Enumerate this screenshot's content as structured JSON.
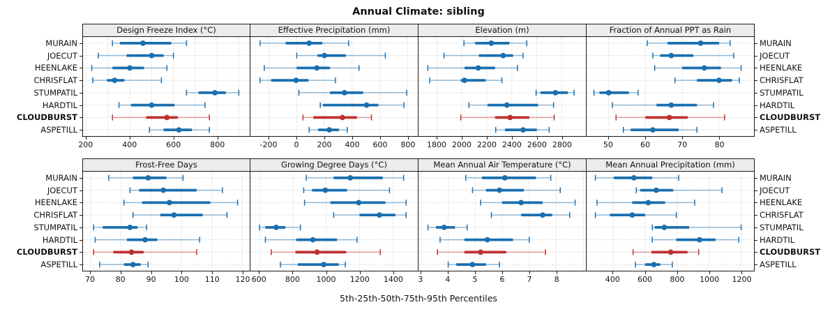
{
  "title": "Annual Climate: sibling",
  "caption": "5th-25th-50th-75th-95th Percentiles",
  "colors": {
    "series": "#1a6faf",
    "series_light": "rgba(26,111,175,0.45)",
    "highlight": "#bf3030",
    "highlight_light": "rgba(191,48,48,0.45)",
    "grid": "#c4c4c4",
    "border": "#1a1a1a",
    "header_bg": "#ececec"
  },
  "chart_data": {
    "type": "scatter",
    "style": "trellis dot plot with 5th-25th-50th-75th-95th percentile intervals (dot = median, thick bar = 25th-75th, thin whisker with end caps = 5th-95th)",
    "layout": {
      "panel_rows": 2,
      "panel_cols": 4,
      "site_labels_on_both_sides": true,
      "grid": "dotted"
    },
    "sites": [
      "MURAIN",
      "JOECUT",
      "HEENLAKE",
      "CHRISFLAT",
      "STUMPATIL",
      "HARDTIL",
      "CLOUDBURST",
      "ASPETILL"
    ],
    "highlight_site": "CLOUDBURST",
    "percentile_labels": [
      "5th",
      "25th",
      "50th",
      "75th",
      "95th"
    ],
    "panels": [
      {
        "title": "Design Freeze Index (°C)",
        "row": 0,
        "xlim": [
          185,
          950
        ],
        "ticks": [
          200,
          400,
          600,
          800
        ],
        "grid": [
          200,
          300,
          400,
          500,
          600,
          700,
          800,
          900
        ],
        "values": [
          [
            320,
            355,
            460,
            590,
            660
          ],
          [
            255,
            385,
            500,
            555,
            600
          ],
          [
            225,
            320,
            400,
            465,
            570
          ],
          [
            230,
            295,
            330,
            375,
            545
          ],
          [
            660,
            715,
            790,
            840,
            900
          ],
          [
            350,
            405,
            500,
            605,
            745
          ],
          [
            320,
            475,
            570,
            620,
            765
          ],
          [
            490,
            555,
            625,
            685,
            765
          ]
        ]
      },
      {
        "title": "Effective Precipitation (mm)",
        "row": 0,
        "xlim": [
          -335,
          875
        ],
        "ticks": [
          -200,
          0,
          200,
          400,
          600,
          800
        ],
        "grid": [
          -200,
          0,
          200,
          400,
          600,
          800
        ],
        "values": [
          [
            -265,
            -80,
            90,
            185,
            375
          ],
          [
            0,
            150,
            200,
            355,
            640
          ],
          [
            -235,
            0,
            145,
            240,
            450
          ],
          [
            -265,
            -185,
            -5,
            85,
            280
          ],
          [
            15,
            240,
            345,
            480,
            795
          ],
          [
            170,
            190,
            505,
            590,
            775
          ],
          [
            45,
            120,
            330,
            435,
            540
          ],
          [
            90,
            155,
            235,
            305,
            365
          ]
        ]
      },
      {
        "title": "Elevation (m)",
        "row": 0,
        "xlim": [
          1650,
          2995
        ],
        "ticks": [
          1800,
          2000,
          2200,
          2400,
          2600,
          2800
        ],
        "grid": [
          1800,
          2000,
          2200,
          2400,
          2600,
          2800
        ],
        "values": [
          [
            2015,
            2105,
            2235,
            2380,
            2520
          ],
          [
            1855,
            2135,
            2330,
            2410,
            2490
          ],
          [
            1725,
            2020,
            2130,
            2265,
            2445
          ],
          [
            1740,
            1990,
            2020,
            2190,
            2320
          ],
          [
            2595,
            2630,
            2750,
            2850,
            2900
          ],
          [
            2055,
            2205,
            2360,
            2610,
            2735
          ],
          [
            1990,
            2265,
            2385,
            2540,
            2740
          ],
          [
            2270,
            2345,
            2490,
            2600,
            2700
          ]
        ]
      },
      {
        "title": "Fraction of Annual PPT as Rain",
        "row": 0,
        "xlim": [
          44,
          89.5
        ],
        "ticks": [
          50,
          60,
          70,
          80
        ],
        "grid": [
          50,
          60,
          70,
          80
        ],
        "values": [
          [
            60.5,
            66,
            75,
            80,
            83
          ],
          [
            62,
            64,
            67,
            73,
            84
          ],
          [
            62.5,
            70,
            76,
            80.5,
            86
          ],
          [
            68,
            74,
            80,
            83.5,
            85.5
          ],
          [
            46,
            47.5,
            50,
            55.5,
            58
          ],
          [
            51,
            63,
            67,
            74,
            78.5
          ],
          [
            52,
            60,
            66.5,
            71.5,
            81.5
          ],
          [
            54,
            56,
            62,
            69,
            74
          ]
        ]
      },
      {
        "title": "Frost-Free Days",
        "row": 1,
        "xlim": [
          67.5,
          122.5
        ],
        "ticks": [
          70,
          80,
          90,
          100,
          110,
          120
        ],
        "grid": [
          70,
          80,
          90,
          100,
          110,
          120
        ],
        "values": [
          [
            76,
            84,
            89,
            95,
            100.5
          ],
          [
            83,
            86,
            94,
            105,
            113.5
          ],
          [
            81,
            87,
            96,
            109.5,
            118.5
          ],
          [
            84,
            93,
            97.5,
            107,
            115
          ],
          [
            71,
            74,
            83,
            85.5,
            88.5
          ],
          [
            71.5,
            82,
            88,
            92,
            106
          ],
          [
            71,
            77.5,
            83.5,
            87.5,
            105
          ],
          [
            73,
            81,
            84,
            86.5,
            89
          ]
        ]
      },
      {
        "title": "Growing Degree Days (°C)",
        "row": 1,
        "xlim": [
          545,
          1550
        ],
        "ticks": [
          600,
          800,
          1000,
          1200,
          1400
        ],
        "grid": [
          600,
          800,
          1000,
          1200,
          1400
        ],
        "values": [
          [
            880,
            1045,
            1145,
            1340,
            1465
          ],
          [
            865,
            915,
            995,
            1125,
            1380
          ],
          [
            870,
            1025,
            1195,
            1355,
            1480
          ],
          [
            1045,
            1200,
            1320,
            1415,
            1480
          ],
          [
            600,
            635,
            700,
            755,
            845
          ],
          [
            635,
            820,
            920,
            1065,
            1185
          ],
          [
            670,
            815,
            945,
            1120,
            1325
          ],
          [
            725,
            830,
            985,
            1075,
            1115
          ]
        ]
      },
      {
        "title": "Mean Annual Air Temperature (°C)",
        "row": 1,
        "xlim": [
          2.9,
          9.1
        ],
        "ticks": [
          3,
          4,
          5,
          6,
          7,
          8
        ],
        "grid": [
          3,
          4,
          5,
          6,
          7,
          8,
          9
        ],
        "values": [
          [
            4.65,
            5.25,
            6.1,
            7.25,
            7.8
          ],
          [
            4.9,
            5.4,
            5.9,
            6.8,
            8.15
          ],
          [
            5.2,
            6.0,
            6.7,
            7.5,
            8.7
          ],
          [
            5.6,
            6.7,
            7.5,
            7.85,
            8.5
          ],
          [
            3.25,
            3.55,
            3.85,
            4.25,
            4.7
          ],
          [
            3.7,
            4.6,
            5.45,
            6.4,
            7.0
          ],
          [
            3.6,
            4.6,
            5.2,
            6.15,
            7.6
          ],
          [
            4.0,
            4.3,
            4.9,
            5.4,
            5.9
          ]
        ]
      },
      {
        "title": "Mean Annual Precipitation (mm)",
        "row": 1,
        "xlim": [
          235,
          1280
        ],
        "ticks": [
          400,
          600,
          800,
          1000,
          1200
        ],
        "grid": [
          400,
          600,
          800,
          1000,
          1200
        ],
        "values": [
          [
            290,
            405,
            530,
            645,
            810
          ],
          [
            545,
            570,
            670,
            775,
            1080
          ],
          [
            300,
            520,
            620,
            725,
            910
          ],
          [
            290,
            380,
            520,
            600,
            795
          ],
          [
            645,
            660,
            720,
            875,
            1200
          ],
          [
            645,
            795,
            940,
            1040,
            1185
          ],
          [
            525,
            640,
            760,
            865,
            935
          ],
          [
            540,
            600,
            655,
            695,
            770
          ]
        ]
      }
    ]
  }
}
